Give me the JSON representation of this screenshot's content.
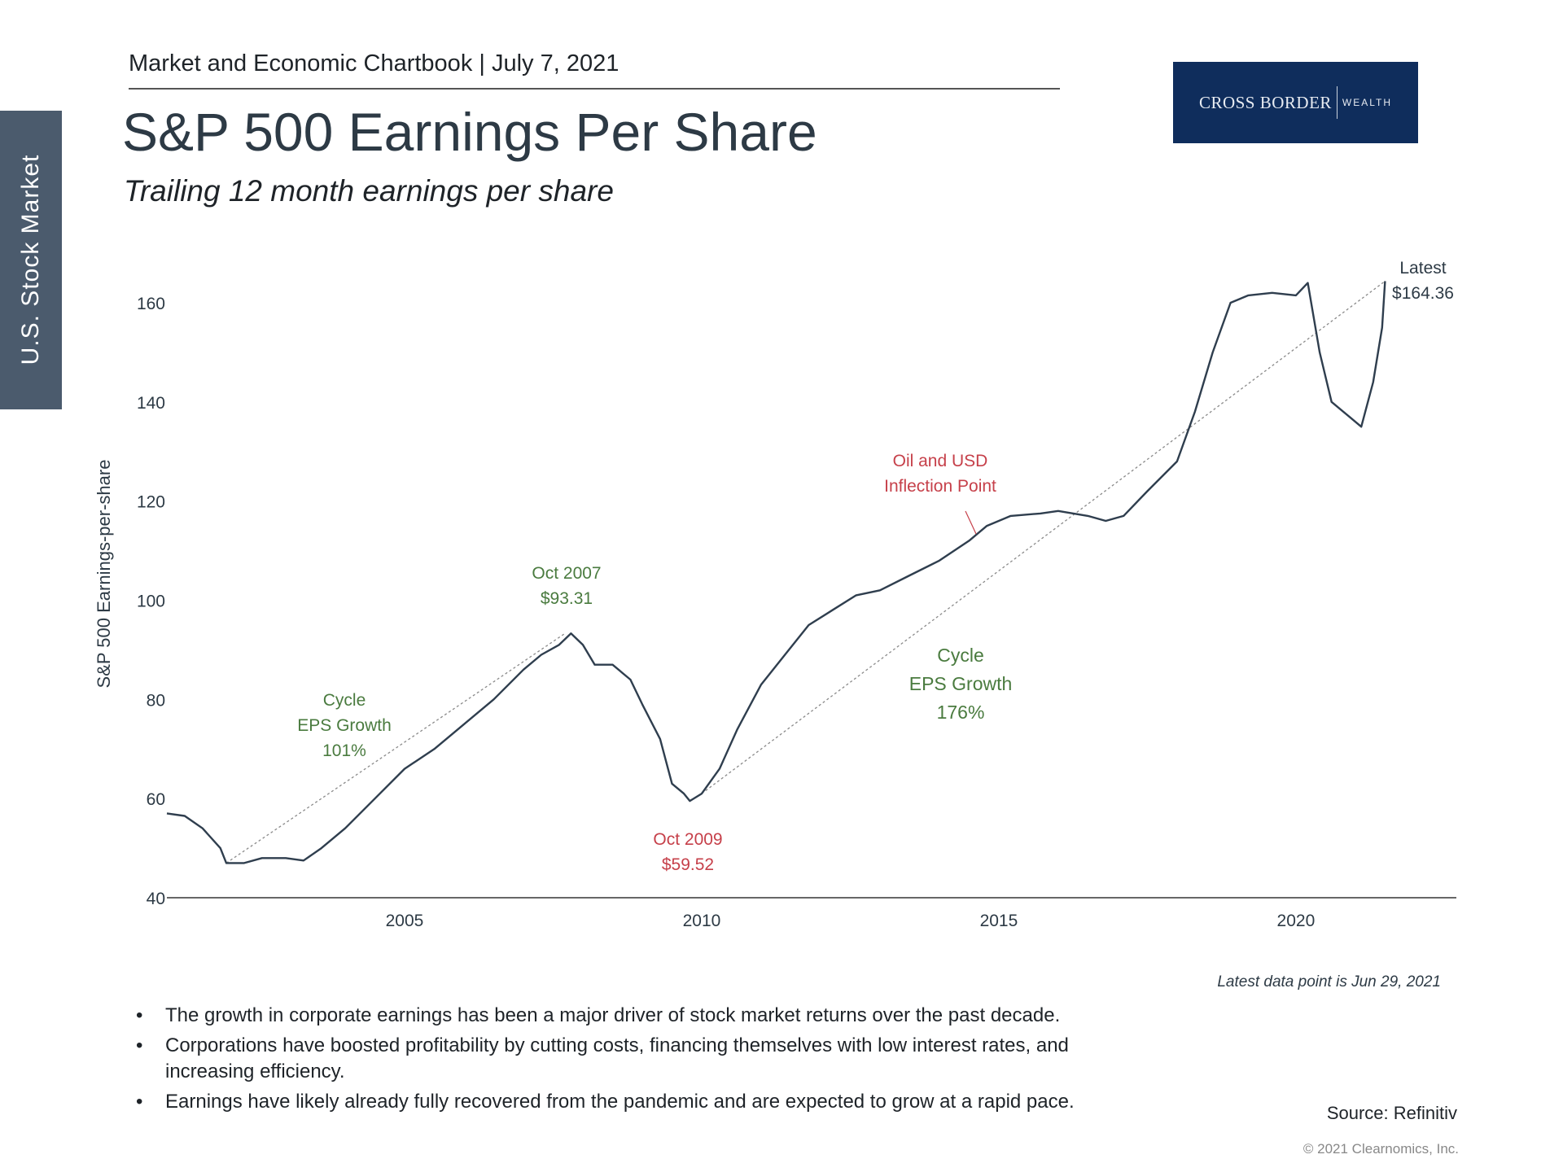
{
  "header": {
    "text": "Market and Economic Chartbook | July 7, 2021"
  },
  "logo": {
    "main": "CROSS BORDER",
    "sub": "WEALTH"
  },
  "sidebar": {
    "label": "U.S. Stock Market"
  },
  "title": "S&P 500 Earnings Per Share",
  "subtitle": "Trailing 12 month earnings per share",
  "chart_data": {
    "type": "line",
    "title": "S&P 500 Earnings Per Share",
    "ylabel": "S&P 500 Earnings-per-share",
    "xlabel": "",
    "xlim": [
      2001.0,
      2022.7
    ],
    "ylim": [
      40,
      165
    ],
    "x_ticks": [
      2005,
      2010,
      2015,
      2020
    ],
    "x_tick_labels": [
      "2005",
      "2010",
      "2015",
      "2020"
    ],
    "y_ticks": [
      40,
      60,
      80,
      100,
      120,
      140,
      160
    ],
    "y_tick_labels": [
      "40",
      "60",
      "80",
      "100",
      "120",
      "140",
      "160"
    ],
    "grid": false,
    "colors": {
      "line": "#2f3e4e",
      "trend": "#8a8a8a",
      "green": "#4a7b3f",
      "red": "#c6404a"
    },
    "series": [
      {
        "x": [
          2001.0,
          2001.3,
          2001.6,
          2001.9,
          2002.0,
          2002.3,
          2002.6,
          2003.0,
          2003.3,
          2003.6,
          2004.0,
          2004.5,
          2005.0,
          2005.5,
          2006.0,
          2006.5,
          2007.0,
          2007.3,
          2007.6,
          2007.8,
          2008.0,
          2008.2,
          2008.5,
          2008.8,
          2009.0,
          2009.3,
          2009.5,
          2009.7,
          2009.8,
          2010.0,
          2010.3,
          2010.6,
          2011.0,
          2011.4,
          2011.8,
          2012.2,
          2012.6,
          2013.0,
          2013.5,
          2014.0,
          2014.5,
          2014.8,
          2015.2,
          2015.7,
          2016.0,
          2016.5,
          2016.8,
          2017.1,
          2017.5,
          2018.0,
          2018.3,
          2018.6,
          2018.9,
          2019.2,
          2019.6,
          2020.0,
          2020.2,
          2020.4,
          2020.6,
          2020.9,
          2021.1,
          2021.3,
          2021.45,
          2021.5
        ],
        "y": [
          57,
          56.5,
          54,
          50,
          47,
          47,
          48,
          48,
          47.5,
          50,
          54,
          60,
          66,
          70,
          75,
          80,
          86,
          89,
          91,
          93.31,
          91,
          87,
          87,
          84,
          79,
          72,
          63,
          61,
          59.52,
          61,
          66,
          74,
          83,
          89,
          95,
          98,
          101,
          102,
          105,
          108,
          112,
          115,
          117,
          117.5,
          118,
          117,
          116,
          117,
          122,
          128,
          138,
          150,
          160,
          161.5,
          162,
          161.5,
          164,
          150,
          140,
          137,
          135,
          144,
          155,
          164.36
        ]
      }
    ],
    "trend_lines": [
      {
        "from": [
          2002.0,
          47
        ],
        "to": [
          2007.7,
          93.31
        ]
      },
      {
        "from": [
          2010.0,
          61
        ],
        "to": [
          2021.5,
          164.36
        ]
      }
    ],
    "annotations": {
      "peak_2007": [
        "Oct 2007",
        "$93.31"
      ],
      "cycle1": [
        "Cycle",
        "EPS Growth",
        "101%"
      ],
      "trough_2009": [
        "Oct 2009",
        "$59.52"
      ],
      "oil": [
        "Oil and USD",
        "Inflection Point"
      ],
      "cycle2": [
        "Cycle",
        "EPS Growth",
        "176%"
      ],
      "latest": [
        "Latest",
        "$164.36"
      ]
    }
  },
  "latest_note": "Latest data point is Jun 29, 2021",
  "bullets": [
    "The growth in corporate earnings has been a major driver of stock market returns over the past decade.",
    "Corporations have boosted profitability by cutting costs, financing themselves with low interest rates, and increasing efficiency.",
    "Earnings have likely already fully recovered from the pandemic and are expected to grow at a rapid pace."
  ],
  "source": "Source: Refinitiv",
  "copyright": "© 2021 Clearnomics, Inc."
}
